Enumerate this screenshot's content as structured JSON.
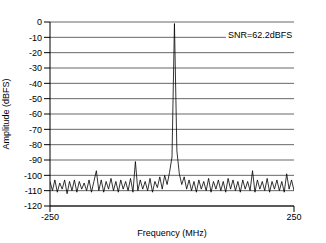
{
  "chart_data": {
    "type": "line",
    "x_label": "Frequency (MHz)",
    "y_label": "Amplitude (dBFS)",
    "annotations": [
      "SNR=62.2dBFS"
    ],
    "color": "#000000",
    "grid": true,
    "xlim": [
      -250,
      250
    ],
    "xticks": [
      -250,
      250
    ],
    "ylim": [
      -120,
      0
    ],
    "yticks": [
      0,
      -10,
      -20,
      -30,
      -40,
      -50,
      -60,
      -70,
      -80,
      -90,
      -100,
      -110,
      -120
    ],
    "x": [
      -250,
      -245,
      -240,
      -235,
      -230,
      -225,
      -220,
      -215,
      -210,
      -205,
      -200,
      -195,
      -190,
      -185,
      -180,
      -175,
      -170,
      -165,
      -160,
      -155,
      -150,
      -145,
      -140,
      -135,
      -130,
      -125,
      -120,
      -115,
      -110,
      -105,
      -100,
      -95,
      -90,
      -85,
      -80,
      -75,
      -70,
      -65,
      -60,
      -55,
      -50,
      -45,
      -40,
      -35,
      -30,
      -25,
      -20,
      -15,
      -10,
      -5,
      0,
      5,
      10,
      15,
      20,
      25,
      30,
      35,
      40,
      45,
      50,
      55,
      60,
      65,
      70,
      75,
      80,
      85,
      90,
      95,
      100,
      105,
      110,
      115,
      120,
      125,
      130,
      135,
      140,
      145,
      150,
      155,
      160,
      165,
      170,
      175,
      180,
      185,
      190,
      195,
      200,
      205,
      210,
      215,
      220,
      225,
      230,
      235,
      240,
      245,
      250
    ],
    "values": [
      -104,
      -110,
      -103,
      -111,
      -105,
      -109,
      -103,
      -112,
      -104,
      -110,
      -103,
      -111,
      -104,
      -109,
      -105,
      -110,
      -103,
      -111,
      -104,
      -97,
      -110,
      -103,
      -111,
      -104,
      -109,
      -102,
      -110,
      -104,
      -111,
      -103,
      -109,
      -104,
      -110,
      -102,
      -111,
      -91,
      -110,
      -103,
      -109,
      -104,
      -110,
      -102,
      -111,
      -104,
      -108,
      -101,
      -109,
      -100,
      -106,
      -98,
      -88,
      -1,
      -84,
      -99,
      -106,
      -101,
      -109,
      -103,
      -110,
      -104,
      -111,
      -103,
      -109,
      -104,
      -110,
      -102,
      -111,
      -104,
      -109,
      -103,
      -110,
      -104,
      -111,
      -102,
      -109,
      -103,
      -110,
      -104,
      -111,
      -103,
      -109,
      -104,
      -110,
      -97,
      -111,
      -103,
      -109,
      -104,
      -110,
      -102,
      -111,
      -104,
      -109,
      -103,
      -110,
      -104,
      -111,
      -99,
      -109,
      -103,
      -110
    ]
  }
}
